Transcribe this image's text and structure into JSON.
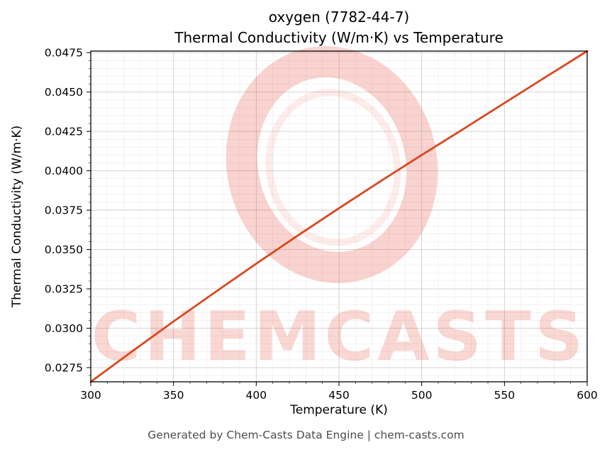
{
  "figure": {
    "title_line1": "oxygen (7782-44-7)",
    "title_line2": "Thermal Conductivity (W/m·K) vs Temperature",
    "footer": "Generated by Chem-Casts Data Engine | chem-casts.com"
  },
  "watermark": {
    "text": "CHEMCASTS",
    "color": "#e74c3c"
  },
  "chart_data": {
    "type": "line",
    "title": "oxygen (7782-44-7) — Thermal Conductivity (W/m·K) vs Temperature",
    "xlabel": "Temperature (K)",
    "ylabel": "Thermal Conductivity (W/m·K)",
    "xlim": [
      300,
      600
    ],
    "ylim": [
      0.0266,
      0.0476
    ],
    "x_tick_values": [
      300,
      350,
      400,
      450,
      500,
      550,
      600
    ],
    "x_tick_labels": [
      "300",
      "350",
      "400",
      "450",
      "500",
      "550",
      "600"
    ],
    "y_tick_values": [
      0.0275,
      0.03,
      0.0325,
      0.035,
      0.0375,
      0.04,
      0.0425,
      0.045,
      0.0475
    ],
    "y_tick_labels": [
      "0.0275",
      "0.0300",
      "0.0325",
      "0.0350",
      "0.0375",
      "0.0400",
      "0.0425",
      "0.0450",
      "0.0475"
    ],
    "x_minor_step": 10,
    "y_minor_step": 0.0005,
    "grid": true,
    "legend": false,
    "line_color": "#d9481f",
    "major_grid_color": "#cfcfcf",
    "minor_grid_color": "#e9e9e9",
    "series": [
      {
        "name": "oxygen thermal conductivity",
        "x": [
          300,
          325,
          350,
          375,
          400,
          425,
          450,
          475,
          500,
          525,
          550,
          575,
          600
        ],
        "y": [
          0.0266,
          0.02853,
          0.03043,
          0.03228,
          0.0341,
          0.03588,
          0.03762,
          0.03933,
          0.041,
          0.04264,
          0.0443,
          0.04596,
          0.0476
        ]
      }
    ]
  }
}
